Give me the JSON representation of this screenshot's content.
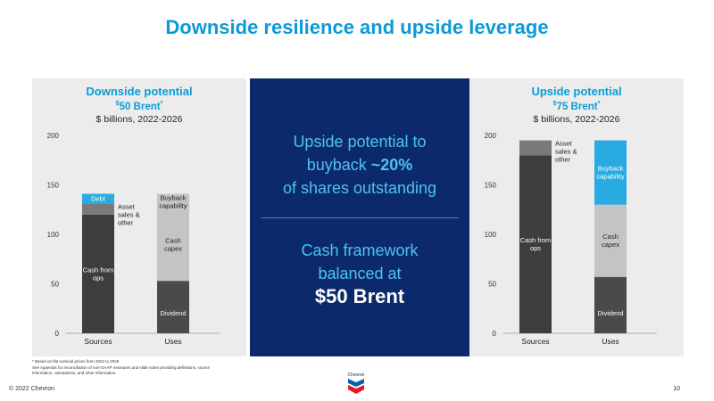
{
  "title": "Downside resilience and upside leverage",
  "left_panel": {
    "heading": "Downside potential",
    "price_sup": "$",
    "price": "50 Brent",
    "price_mark": "*",
    "units": "$ billions, 2022-2026"
  },
  "right_panel": {
    "heading": "Upside potential",
    "price_sup": "$",
    "price": "75 Brent",
    "price_mark": "*",
    "units": "$ billions, 2022-2026"
  },
  "center": {
    "line1": "Upside potential to",
    "line2_prefix": "buyback ",
    "line2_bold": "~20%",
    "line3": "of shares outstanding",
    "line4": "Cash framework",
    "line5": "balanced at",
    "line6": "$50 Brent"
  },
  "footnotes": {
    "line1": "* Based on flat nominal prices from 2022 to 2026",
    "line2": "See Appendix for reconciliation of non-GAAP measures and slide notes providing definitions, source",
    "line3": "information, calculations, and other information."
  },
  "copyright": "© 2022 Chevron",
  "page_number": "10",
  "logo_text": "Chevron",
  "colors": {
    "title": "#0b9bd6",
    "center_bg": "#0c2a6b",
    "dark_segment": "#3d3d3d",
    "mid_segment": "#7a7a7a",
    "light_segment": "#c4c4c4",
    "blue_segment": "#29abe2"
  },
  "chart_data": [
    {
      "type": "bar",
      "stacked": true,
      "categories": [
        "Sources",
        "Uses"
      ],
      "ylim": [
        0,
        200
      ],
      "yticks": [
        0,
        50,
        100,
        150,
        200
      ],
      "segments": [
        {
          "bar": "Sources",
          "label": "Cash from ops",
          "value": 120,
          "color": "#3d3d3d",
          "label_pos": "inside"
        },
        {
          "bar": "Sources",
          "label": "Asset sales & other",
          "value": 11,
          "color": "#7a7a7a",
          "label_pos": "right"
        },
        {
          "bar": "Sources",
          "label": "Debt",
          "value": 10,
          "color": "#29abe2",
          "label_pos": "inside"
        },
        {
          "bar": "Uses",
          "label": "Dividend",
          "value": 53,
          "color": "#4a4a4a",
          "label_pos": "inside"
        },
        {
          "bar": "Uses",
          "label": "Cash capex",
          "value": 73,
          "color": "#c4c4c4",
          "label_pos": "inside"
        },
        {
          "bar": "Uses",
          "label": "Buyback capability",
          "value": 15,
          "color": "#c4c4c4",
          "label_pos": "inside"
        }
      ]
    },
    {
      "type": "bar",
      "stacked": true,
      "categories": [
        "Sources",
        "Uses"
      ],
      "ylim": [
        0,
        200
      ],
      "yticks": [
        0,
        50,
        100,
        150,
        200
      ],
      "segments": [
        {
          "bar": "Sources",
          "label": "Cash from ops",
          "value": 180,
          "color": "#3d3d3d",
          "label_pos": "inside"
        },
        {
          "bar": "Sources",
          "label": "Asset sales & other",
          "value": 15,
          "color": "#7a7a7a",
          "label_pos": "right"
        },
        {
          "bar": "Uses",
          "label": "Dividend",
          "value": 57,
          "color": "#4a4a4a",
          "label_pos": "inside"
        },
        {
          "bar": "Uses",
          "label": "Cash capex",
          "value": 73,
          "color": "#c4c4c4",
          "label_pos": "inside"
        },
        {
          "bar": "Uses",
          "label": "Buyback capability",
          "value": 65,
          "color": "#29abe2",
          "label_pos": "inside"
        }
      ]
    }
  ]
}
